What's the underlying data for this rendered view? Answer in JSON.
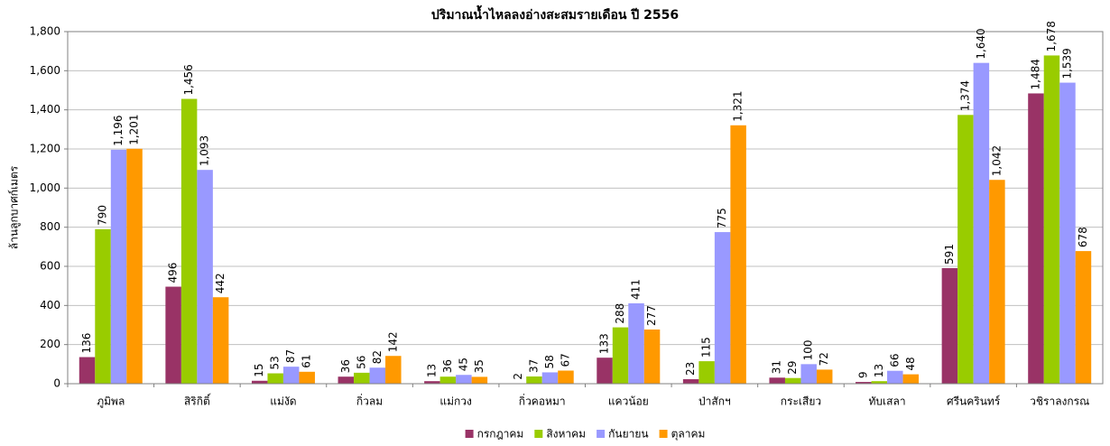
{
  "chart_data": {
    "type": "bar",
    "title": "ปริมาณน้ำไหลลงอ่างสะสมรายเดือน ปี 2556",
    "y_label": "ล้านลูกบาศก์เมตร",
    "categories": [
      "ภูมิพล",
      "สิริกิติ์",
      "แม่งัด",
      "กิ่วลม",
      "แม่กวง",
      "กิ่วคอหมา",
      "แควน้อย",
      "ป่าสักฯ",
      "กระเสียว",
      "ทับเสลา",
      "ศรีนครินทร์",
      "วชิราลงกรณ"
    ],
    "series": [
      {
        "name": "กรกฎาคม",
        "color": "#993366",
        "values": [
          136,
          496,
          15,
          36,
          13,
          2,
          133,
          23,
          31,
          9,
          591,
          1484
        ],
        "value_labels": [
          "136",
          "496",
          "15",
          "36",
          "13",
          "2",
          "133",
          "23",
          "31",
          "9",
          "591",
          "1,484"
        ]
      },
      {
        "name": "สิงหาคม",
        "color": "#99cc00",
        "values": [
          790,
          1456,
          53,
          56,
          36,
          37,
          288,
          115,
          29,
          13,
          1374,
          1678
        ],
        "value_labels": [
          "790",
          "1,456",
          "53",
          "56",
          "36",
          "37",
          "288",
          "115",
          "29",
          "13",
          "1,374",
          "1,678"
        ]
      },
      {
        "name": "กันยายน",
        "color": "#9999ff",
        "values": [
          1196,
          1093,
          87,
          82,
          45,
          58,
          411,
          775,
          100,
          66,
          1640,
          1539
        ],
        "value_labels": [
          "1,196",
          "1,093",
          "87",
          "82",
          "45",
          "58",
          "411",
          "775",
          "100",
          "66",
          "1,640",
          "1,539"
        ]
      },
      {
        "name": "ตุลาคม",
        "color": "#ff9900",
        "values": [
          1201,
          442,
          61,
          142,
          35,
          67,
          277,
          1321,
          72,
          48,
          1042,
          678
        ],
        "value_labels": [
          "1,201",
          "442",
          "61",
          "142",
          "35",
          "67",
          "277",
          "1,321",
          "72",
          "48",
          "1,042",
          "678"
        ]
      }
    ],
    "ylim": [
      0,
      1800
    ],
    "yticks": [
      0,
      200,
      400,
      600,
      800,
      {
        "value": 1000,
        "label": "1,000"
      },
      {
        "value": 1200,
        "label": "1,200"
      },
      {
        "value": 1400,
        "label": "1,400"
      },
      {
        "value": 1600,
        "label": "1,600"
      },
      {
        "value": 1800,
        "label": "1,800"
      }
    ],
    "grid": true,
    "legend": "bottom"
  }
}
